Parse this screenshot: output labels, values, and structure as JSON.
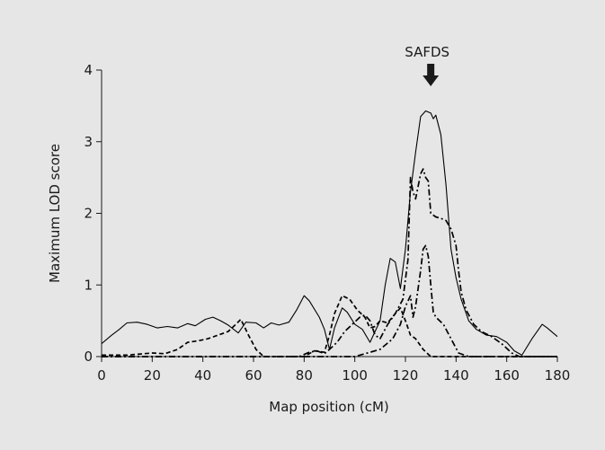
{
  "page": {
    "background": "#e6e6e6"
  },
  "chart_data": {
    "type": "line",
    "title": "",
    "xlabel": "Map position (cM)",
    "ylabel": "Maximum LOD score",
    "xlim": [
      0,
      180
    ],
    "ylim": [
      0,
      4
    ],
    "xticks": [
      0,
      20,
      40,
      60,
      80,
      100,
      120,
      140,
      160,
      180
    ],
    "yticks": [
      0,
      1,
      2,
      3,
      4
    ],
    "grid": false,
    "legend": "none",
    "annotation": {
      "text": "SAFDS",
      "x": 130,
      "marker": "down-arrow"
    },
    "series": [
      {
        "style": "solid",
        "color": "#000000",
        "points": [
          [
            0,
            0.18
          ],
          [
            4,
            0.3
          ],
          [
            7,
            0.38
          ],
          [
            10,
            0.47
          ],
          [
            14,
            0.48
          ],
          [
            18,
            0.45
          ],
          [
            22,
            0.4
          ],
          [
            26,
            0.42
          ],
          [
            30,
            0.4
          ],
          [
            34,
            0.46
          ],
          [
            37,
            0.43
          ],
          [
            41,
            0.52
          ],
          [
            44,
            0.55
          ],
          [
            47,
            0.5
          ],
          [
            50,
            0.44
          ],
          [
            54,
            0.33
          ],
          [
            57,
            0.48
          ],
          [
            61,
            0.47
          ],
          [
            64,
            0.4
          ],
          [
            67,
            0.47
          ],
          [
            70,
            0.44
          ],
          [
            74,
            0.48
          ],
          [
            77,
            0.65
          ],
          [
            80,
            0.85
          ],
          [
            82,
            0.78
          ],
          [
            86,
            0.55
          ],
          [
            88,
            0.38
          ],
          [
            90,
            0.1
          ],
          [
            92,
            0.4
          ],
          [
            95,
            0.68
          ],
          [
            97,
            0.62
          ],
          [
            100,
            0.45
          ],
          [
            103,
            0.38
          ],
          [
            106,
            0.2
          ],
          [
            108,
            0.35
          ],
          [
            110,
            0.5
          ],
          [
            112,
            1.0
          ],
          [
            114,
            1.37
          ],
          [
            116,
            1.32
          ],
          [
            118,
            0.95
          ],
          [
            120,
            1.5
          ],
          [
            122,
            2.3
          ],
          [
            124,
            2.85
          ],
          [
            126,
            3.35
          ],
          [
            128,
            3.43
          ],
          [
            130,
            3.4
          ],
          [
            131,
            3.32
          ],
          [
            132,
            3.37
          ],
          [
            134,
            3.1
          ],
          [
            136,
            2.4
          ],
          [
            138,
            1.5
          ],
          [
            140,
            1.1
          ],
          [
            142,
            0.8
          ],
          [
            145,
            0.5
          ],
          [
            148,
            0.38
          ],
          [
            152,
            0.3
          ],
          [
            156,
            0.28
          ],
          [
            160,
            0.2
          ],
          [
            163,
            0.08
          ],
          [
            166,
            0.02
          ],
          [
            170,
            0.25
          ],
          [
            174,
            0.45
          ],
          [
            176,
            0.4
          ],
          [
            180,
            0.28
          ]
        ]
      },
      {
        "style": "dashed",
        "color": "#000000",
        "points": [
          [
            0,
            0.02
          ],
          [
            10,
            0.02
          ],
          [
            20,
            0.05
          ],
          [
            25,
            0.04
          ],
          [
            30,
            0.1
          ],
          [
            34,
            0.2
          ],
          [
            38,
            0.22
          ],
          [
            42,
            0.25
          ],
          [
            46,
            0.3
          ],
          [
            50,
            0.35
          ],
          [
            53,
            0.45
          ],
          [
            55,
            0.52
          ],
          [
            58,
            0.3
          ],
          [
            61,
            0.1
          ],
          [
            64,
            0.0
          ],
          [
            80,
            0.0
          ],
          [
            84,
            0.08
          ],
          [
            88,
            0.06
          ],
          [
            90,
            0.3
          ],
          [
            92,
            0.6
          ],
          [
            95,
            0.85
          ],
          [
            98,
            0.8
          ],
          [
            101,
            0.65
          ],
          [
            104,
            0.55
          ],
          [
            106,
            0.4
          ],
          [
            108,
            0.42
          ],
          [
            110,
            0.5
          ],
          [
            113,
            0.47
          ],
          [
            116,
            0.6
          ],
          [
            118,
            0.68
          ],
          [
            120,
            0.5
          ],
          [
            122,
            0.3
          ],
          [
            124,
            0.25
          ],
          [
            127,
            0.1
          ],
          [
            130,
            0.0
          ],
          [
            180,
            0.0
          ]
        ]
      },
      {
        "style": "dash-dot",
        "color": "#000000",
        "points": [
          [
            0,
            0.0
          ],
          [
            78,
            0.0
          ],
          [
            82,
            0.06
          ],
          [
            85,
            0.08
          ],
          [
            88,
            0.04
          ],
          [
            90,
            0.1
          ],
          [
            93,
            0.2
          ],
          [
            96,
            0.35
          ],
          [
            99,
            0.45
          ],
          [
            102,
            0.55
          ],
          [
            104,
            0.58
          ],
          [
            106,
            0.5
          ],
          [
            108,
            0.3
          ],
          [
            110,
            0.25
          ],
          [
            113,
            0.45
          ],
          [
            116,
            0.6
          ],
          [
            119,
            0.8
          ],
          [
            121,
            1.35
          ],
          [
            122,
            2.5
          ],
          [
            123,
            2.3
          ],
          [
            124,
            2.2
          ],
          [
            126,
            2.55
          ],
          [
            127,
            2.62
          ],
          [
            128,
            2.5
          ],
          [
            129,
            2.45
          ],
          [
            130,
            2.0
          ],
          [
            132,
            1.95
          ],
          [
            134,
            1.93
          ],
          [
            136,
            1.9
          ],
          [
            138,
            1.78
          ],
          [
            140,
            1.55
          ],
          [
            141,
            1.2
          ],
          [
            142,
            0.9
          ],
          [
            144,
            0.65
          ],
          [
            147,
            0.45
          ],
          [
            150,
            0.35
          ],
          [
            154,
            0.28
          ],
          [
            158,
            0.18
          ],
          [
            162,
            0.05
          ],
          [
            165,
            0.0
          ],
          [
            180,
            0.0
          ]
        ]
      },
      {
        "style": "dash-dot",
        "color": "#000000",
        "points": [
          [
            0,
            0.0
          ],
          [
            100,
            0.0
          ],
          [
            105,
            0.05
          ],
          [
            110,
            0.1
          ],
          [
            115,
            0.25
          ],
          [
            118,
            0.45
          ],
          [
            120,
            0.7
          ],
          [
            122,
            0.85
          ],
          [
            123,
            0.55
          ],
          [
            124,
            0.7
          ],
          [
            126,
            1.2
          ],
          [
            127,
            1.5
          ],
          [
            128,
            1.55
          ],
          [
            129,
            1.4
          ],
          [
            130,
            1.0
          ],
          [
            131,
            0.62
          ],
          [
            132,
            0.55
          ],
          [
            135,
            0.45
          ],
          [
            138,
            0.25
          ],
          [
            141,
            0.05
          ],
          [
            145,
            0.0
          ],
          [
            180,
            0.0
          ]
        ]
      }
    ]
  }
}
